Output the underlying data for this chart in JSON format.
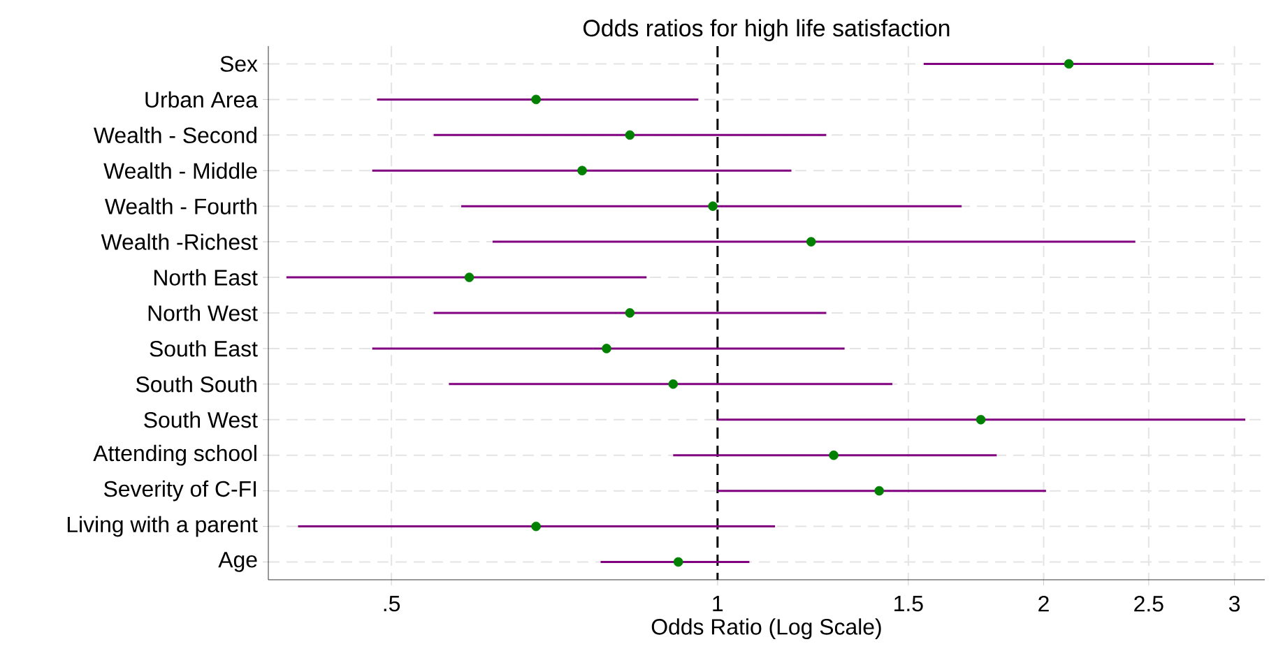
{
  "chart_data": {
    "type": "scatter",
    "orientation": "horizontal",
    "title": "Odds ratios  for high life satisfaction",
    "xlabel": "Odds Ratio (Log Scale)",
    "categories": [
      "Sex",
      "Urban Area",
      "Wealth - Second",
      "Wealth - Middle",
      "Wealth - Fourth",
      "Wealth -Richest",
      "North East",
      "North West",
      "South East",
      "South South",
      "South West",
      "Attending  school",
      "Severity of C-FI",
      "Living with a parent",
      "Age"
    ],
    "color": "#008000",
    "values": [
      2.11,
      0.68,
      0.83,
      0.75,
      0.99,
      1.22,
      0.59,
      0.83,
      0.79,
      0.91,
      1.75,
      1.28,
      1.41,
      0.68,
      0.92
    ],
    "errors": [
      [
        1.55,
        2.87
      ],
      [
        0.485,
        0.96
      ],
      [
        0.547,
        1.26
      ],
      [
        0.48,
        1.17
      ],
      [
        0.58,
        1.68
      ],
      [
        0.62,
        2.43
      ],
      [
        0.4,
        0.86
      ],
      [
        0.547,
        1.26
      ],
      [
        0.48,
        1.31
      ],
      [
        0.565,
        1.45
      ],
      [
        1.0,
        3.07
      ],
      [
        0.91,
        1.81
      ],
      [
        1.0,
        2.01
      ],
      [
        0.41,
        1.13
      ],
      [
        0.78,
        1.07
      ]
    ],
    "log": "x",
    "xlim": [
      0.385,
      3.2
    ],
    "xticks": [
      {
        "value": 0.5,
        "label": ".5"
      },
      1,
      1.5,
      2,
      2.5,
      3
    ],
    "grid": true,
    "marker": "circle",
    "ref_lines": [
      {
        "axis": "x",
        "value": 1,
        "line_style": "dashed",
        "color": "#000000"
      }
    ]
  }
}
